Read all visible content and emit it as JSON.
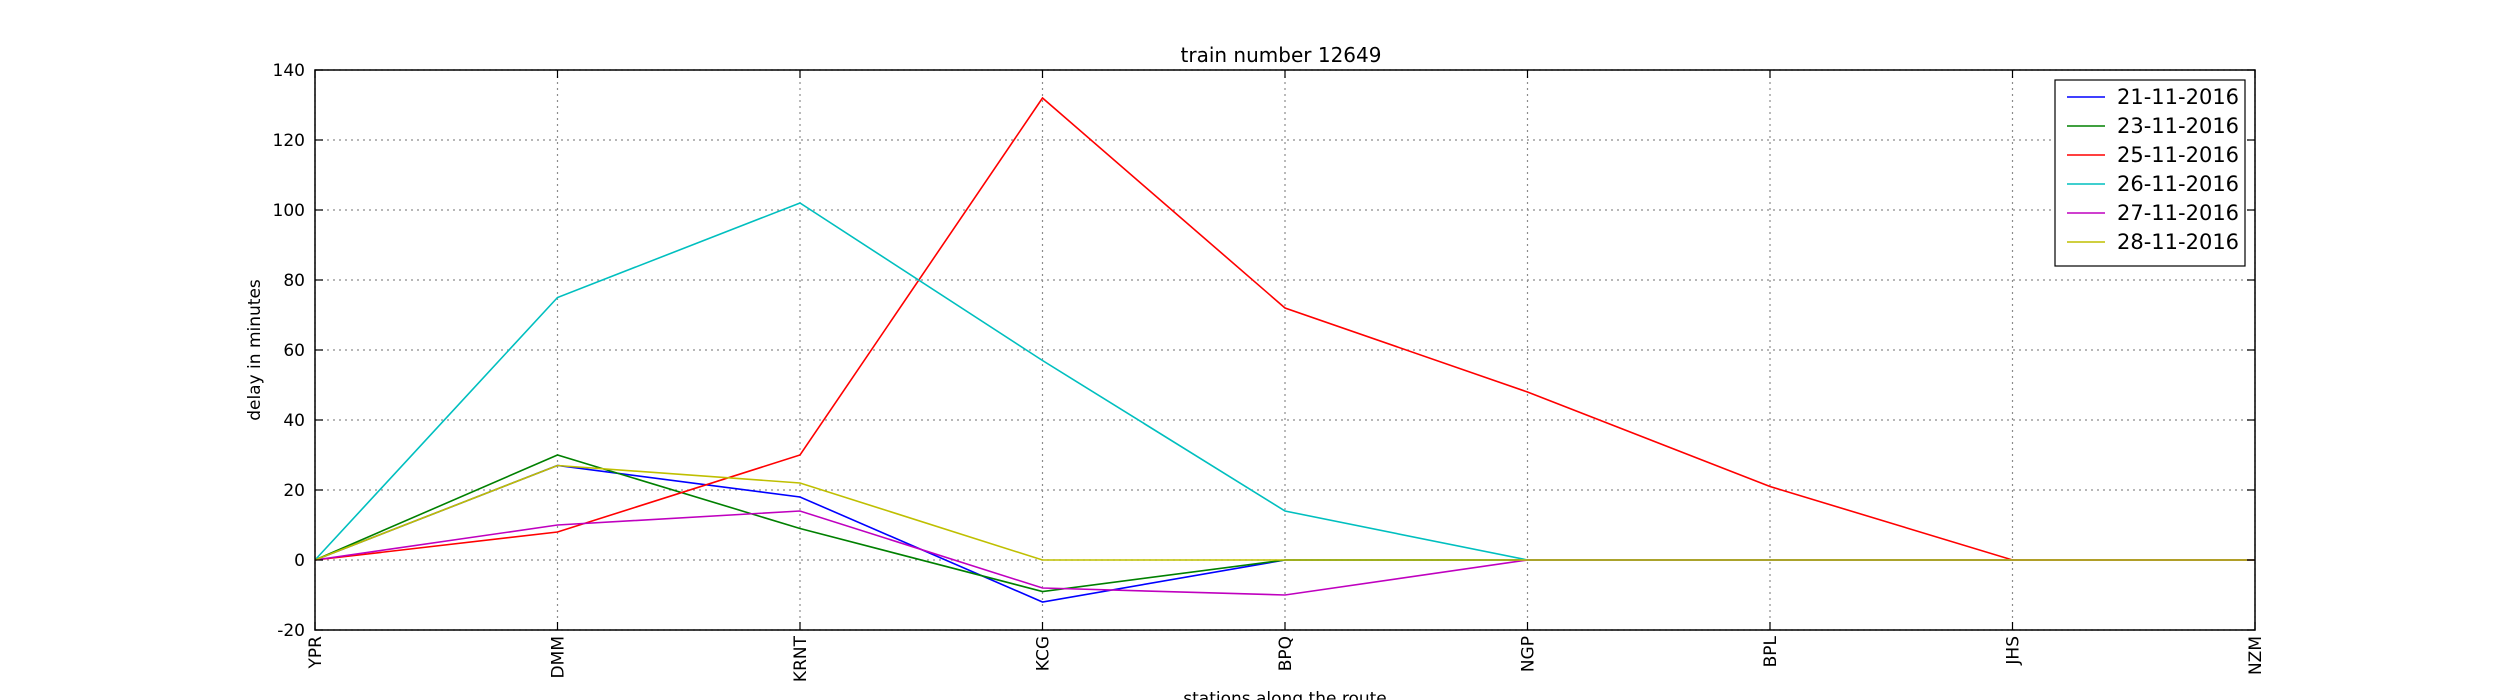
{
  "chart_data": {
    "type": "line",
    "title": "train number 12649",
    "xlabel": "stations along the route",
    "ylabel": "delay in minutes",
    "categories": [
      "YPR",
      "DMM",
      "KRNT",
      "KCG",
      "BPQ",
      "NGP",
      "BPL",
      "JHS",
      "NZM"
    ],
    "ylim": [
      -20,
      140
    ],
    "yticks": [
      -20,
      0,
      20,
      40,
      60,
      80,
      100,
      120,
      140
    ],
    "grid": true,
    "legend_position": "top-right",
    "series": [
      {
        "name": "21-11-2016",
        "color": "#0000ff",
        "values": [
          0,
          27,
          18,
          -12,
          0,
          0,
          0,
          0,
          0
        ]
      },
      {
        "name": "23-11-2016",
        "color": "#008000",
        "values": [
          0,
          30,
          9,
          -9,
          0,
          0,
          0,
          0,
          0
        ]
      },
      {
        "name": "25-11-2016",
        "color": "#ff0000",
        "values": [
          0,
          8,
          30,
          132,
          72,
          48,
          21,
          0,
          0
        ]
      },
      {
        "name": "26-11-2016",
        "color": "#00bfbf",
        "values": [
          0,
          75,
          102,
          57,
          14,
          0,
          0,
          0,
          0
        ]
      },
      {
        "name": "27-11-2016",
        "color": "#bf00bf",
        "values": [
          0,
          10,
          14,
          -8,
          -10,
          0,
          0,
          0,
          0
        ]
      },
      {
        "name": "28-11-2016",
        "color": "#bfbf00",
        "values": [
          0,
          27,
          22,
          0,
          0,
          0,
          0,
          0,
          0
        ]
      }
    ]
  }
}
